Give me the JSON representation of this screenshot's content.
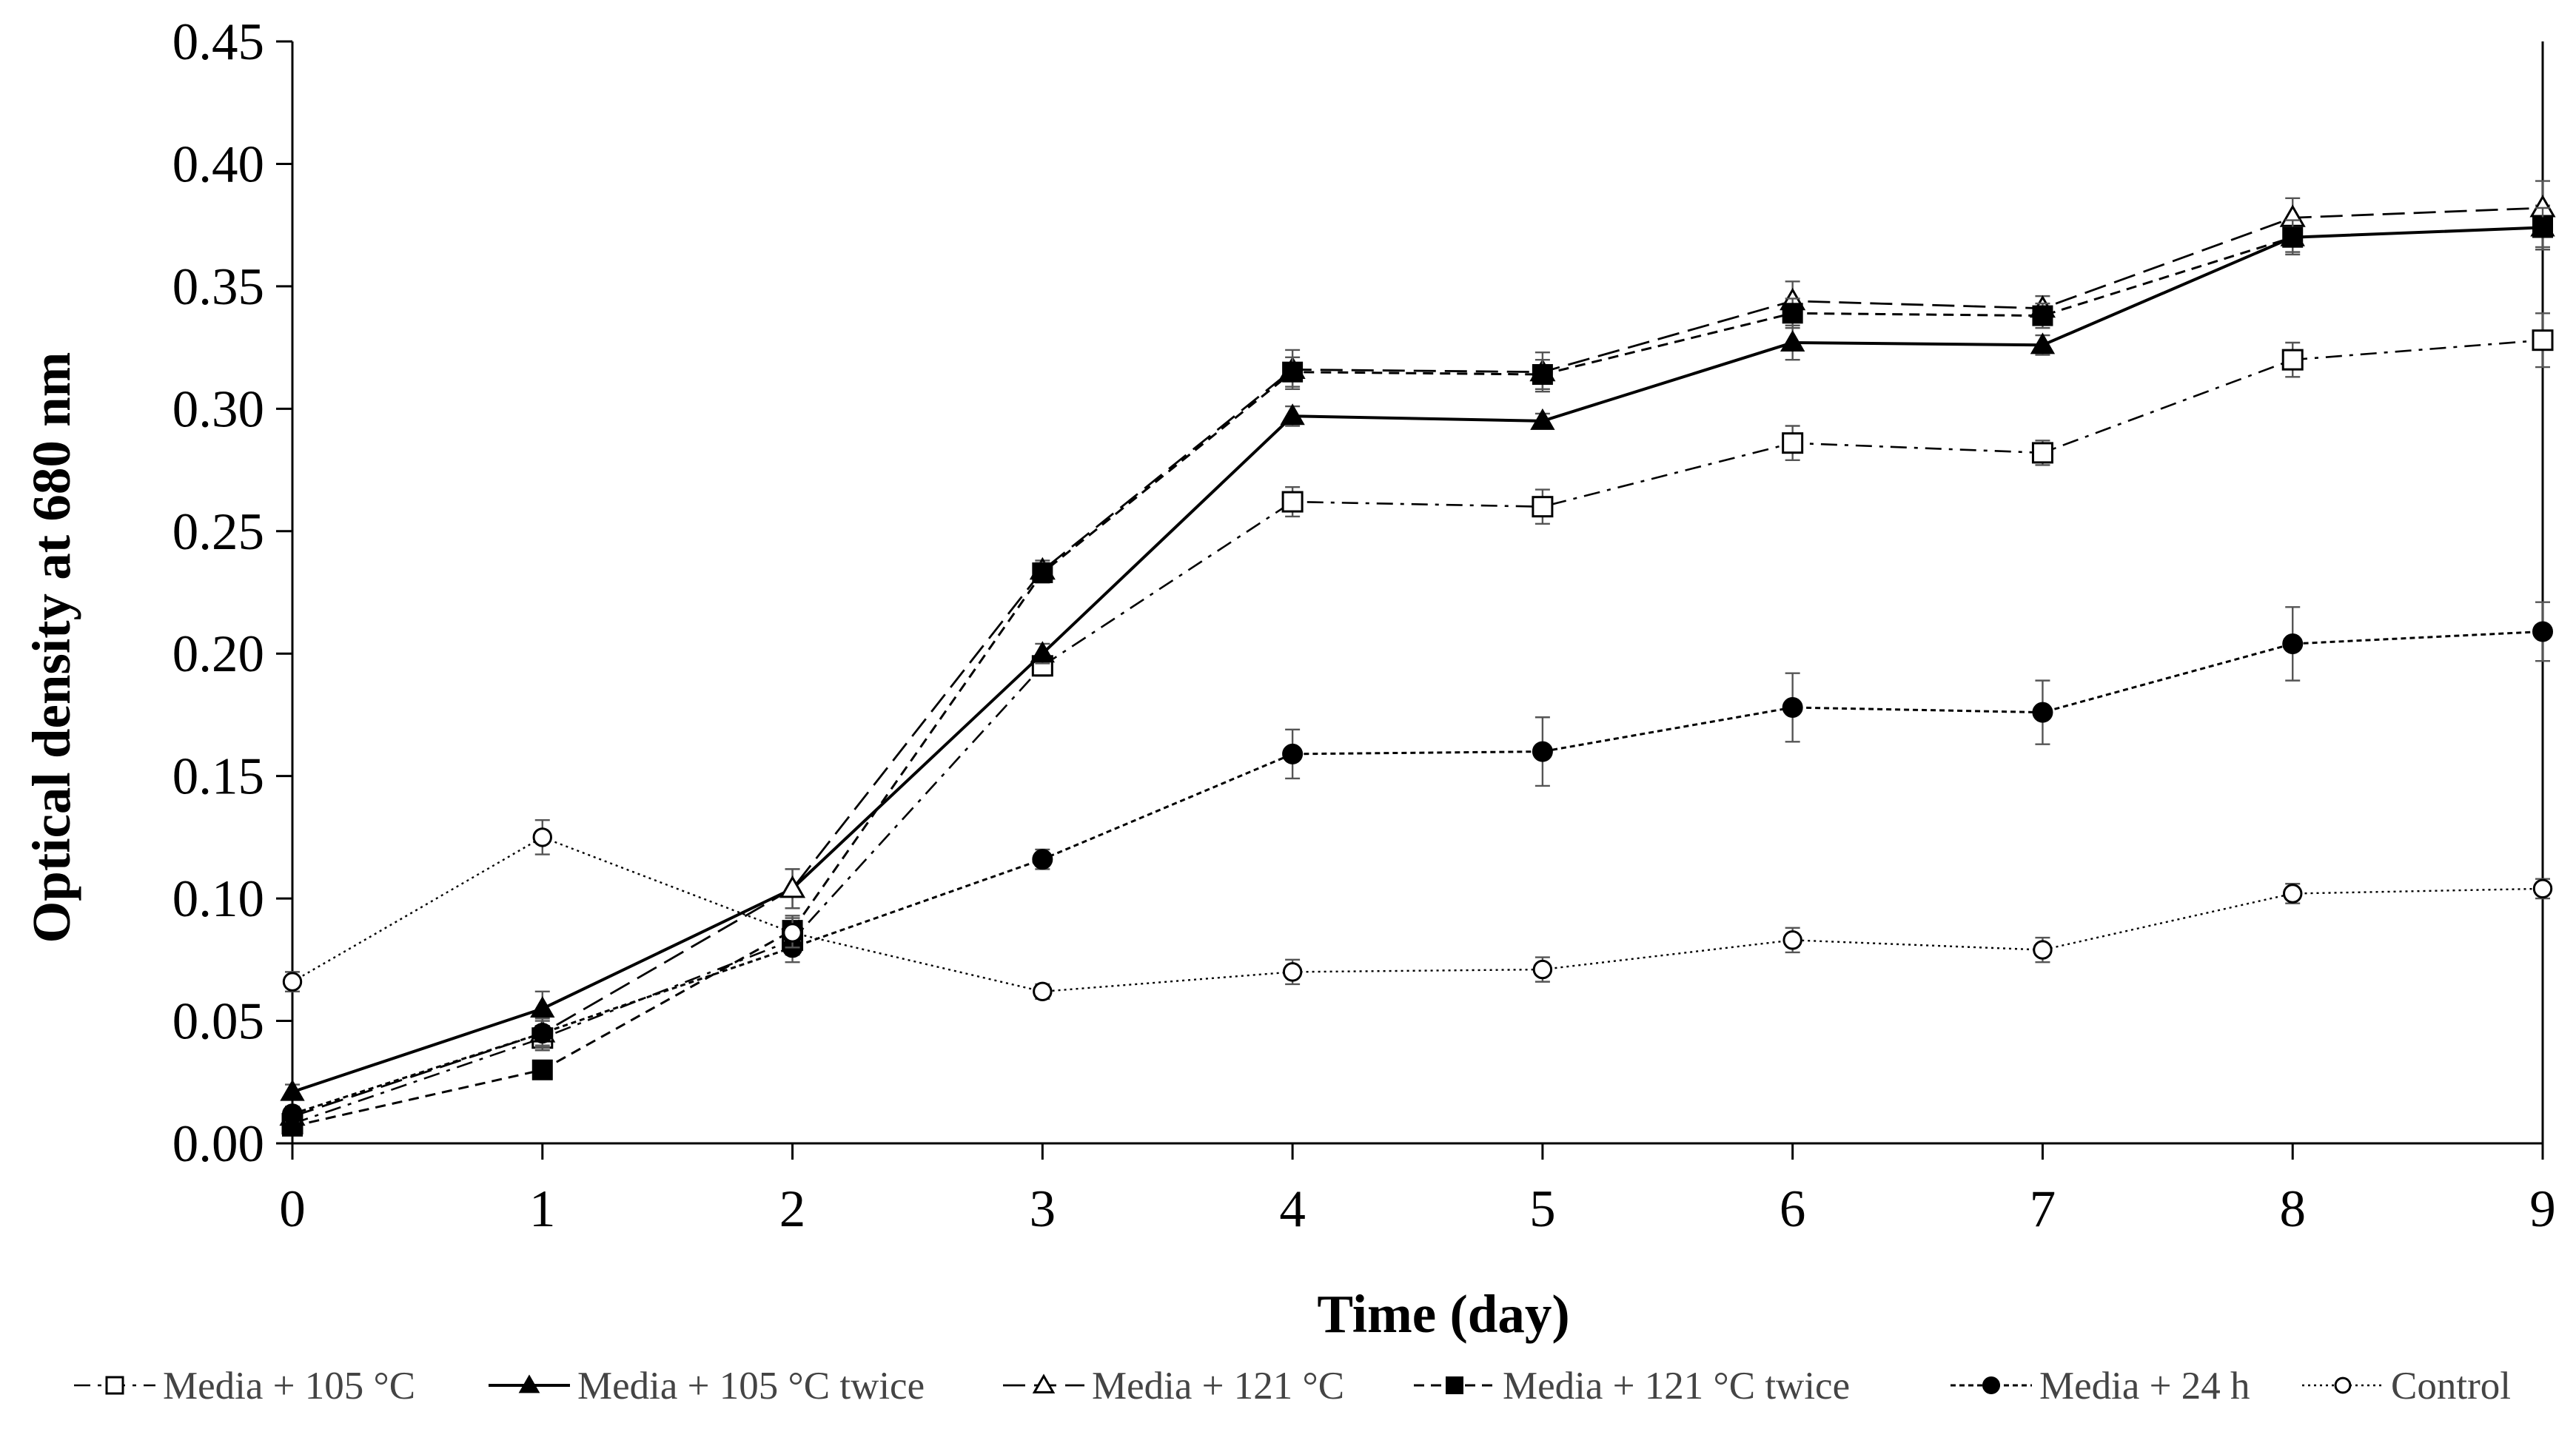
{
  "chart_data": {
    "type": "line",
    "title": "",
    "xlabel": "Time (day)",
    "ylabel": "Optical density at 680 nm",
    "x": [
      0,
      1,
      2,
      3,
      4,
      5,
      6,
      7,
      8,
      9
    ],
    "xlim": [
      0,
      9
    ],
    "ylim": [
      0,
      0.45
    ],
    "x_ticks": [
      "0",
      "1",
      "2",
      "3",
      "4",
      "5",
      "6",
      "7",
      "8",
      "9"
    ],
    "y_ticks": [
      "0.00",
      "0.05",
      "0.10",
      "0.15",
      "0.20",
      "0.25",
      "0.30",
      "0.35",
      "0.40",
      "0.45"
    ],
    "y_tick_values": [
      0,
      0.05,
      0.1,
      0.15,
      0.2,
      0.25,
      0.3,
      0.35,
      0.4,
      0.45
    ],
    "grid": false,
    "legend_position": "bottom",
    "series": [
      {
        "name": "Media + 105 °C",
        "dash": "dashdot",
        "marker": "square-open",
        "values": [
          0.008,
          0.043,
          0.083,
          0.195,
          0.262,
          0.26,
          0.286,
          0.282,
          0.32,
          0.328
        ],
        "errors": [
          0.003,
          0.005,
          0.006,
          0.004,
          0.006,
          0.007,
          0.007,
          0.005,
          0.007,
          0.011
        ]
      },
      {
        "name": "Media + 105 °C twice",
        "dash": "solid",
        "marker": "triangle-filled",
        "values": [
          0.021,
          0.055,
          0.104,
          0.2,
          0.297,
          0.295,
          0.327,
          0.326,
          0.37,
          0.374
        ],
        "errors": [
          0.003,
          0.007,
          0.008,
          0.004,
          0.004,
          0.003,
          0.007,
          0.004,
          0.006,
          0.009
        ]
      },
      {
        "name": "Media + 121 °C",
        "dash": "longdash",
        "marker": "triangle-open",
        "values": [
          0.011,
          0.045,
          0.104,
          0.234,
          0.316,
          0.315,
          0.344,
          0.341,
          0.378,
          0.382
        ],
        "errors": [
          0.003,
          0.005,
          0.008,
          0.004,
          0.008,
          0.008,
          0.008,
          0.005,
          0.008,
          0.011
        ]
      },
      {
        "name": "Media + 121 °C twice",
        "dash": "shortdash",
        "marker": "square-filled",
        "values": [
          0.007,
          0.03,
          0.087,
          0.233,
          0.315,
          0.314,
          0.339,
          0.338,
          0.37,
          0.374
        ],
        "errors": [
          0.003,
          0.003,
          0.006,
          0.004,
          0.006,
          0.006,
          0.006,
          0.005,
          0.007,
          0.008
        ]
      },
      {
        "name": "Media + 24 h",
        "dash": "dotted-dense",
        "marker": "circle-filled",
        "values": [
          0.012,
          0.045,
          0.08,
          0.116,
          0.159,
          0.16,
          0.178,
          0.176,
          0.204,
          0.209
        ],
        "errors": [
          0.003,
          0.006,
          0.006,
          0.004,
          0.01,
          0.014,
          0.014,
          0.013,
          0.015,
          0.012
        ]
      },
      {
        "name": "Control",
        "dash": "dotted",
        "marker": "circle-open",
        "values": [
          0.066,
          0.125,
          0.086,
          0.062,
          0.07,
          0.071,
          0.083,
          0.079,
          0.102,
          0.104
        ],
        "errors": [
          0.004,
          0.007,
          0.006,
          0.003,
          0.005,
          0.005,
          0.005,
          0.005,
          0.004,
          0.004
        ]
      }
    ]
  },
  "colors": {
    "line": "#000000",
    "axis": "#000000",
    "legend_text": "#444444"
  }
}
